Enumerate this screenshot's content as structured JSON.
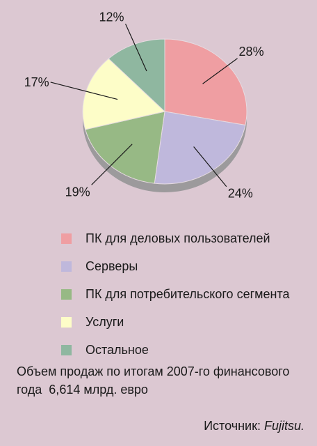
{
  "chart_data": {
    "type": "pie",
    "slices": [
      {
        "label": "ПК для деловых пользователей",
        "value": 28,
        "value_label": "28%",
        "color": "#ef9ea2"
      },
      {
        "label": "Серверы",
        "value": 24,
        "value_label": "24%",
        "color": "#bfb8dc"
      },
      {
        "label": "ПК для потребительского сегмента",
        "value": 19,
        "value_label": "19%",
        "color": "#97b985"
      },
      {
        "label": "Услуги",
        "value": 17,
        "value_label": "17%",
        "color": "#fdfdc8"
      },
      {
        "label": "Остальное",
        "value": 12,
        "value_label": "12%",
        "color": "#8fb7a0"
      }
    ],
    "legend_position": "bottom"
  },
  "note": {
    "line1": "Объем продаж по итогам 2007-го финансового",
    "line2": "года  6,614 млрд. евро"
  },
  "source": {
    "prefix": "Источник: ",
    "brand": "Fujitsu."
  }
}
